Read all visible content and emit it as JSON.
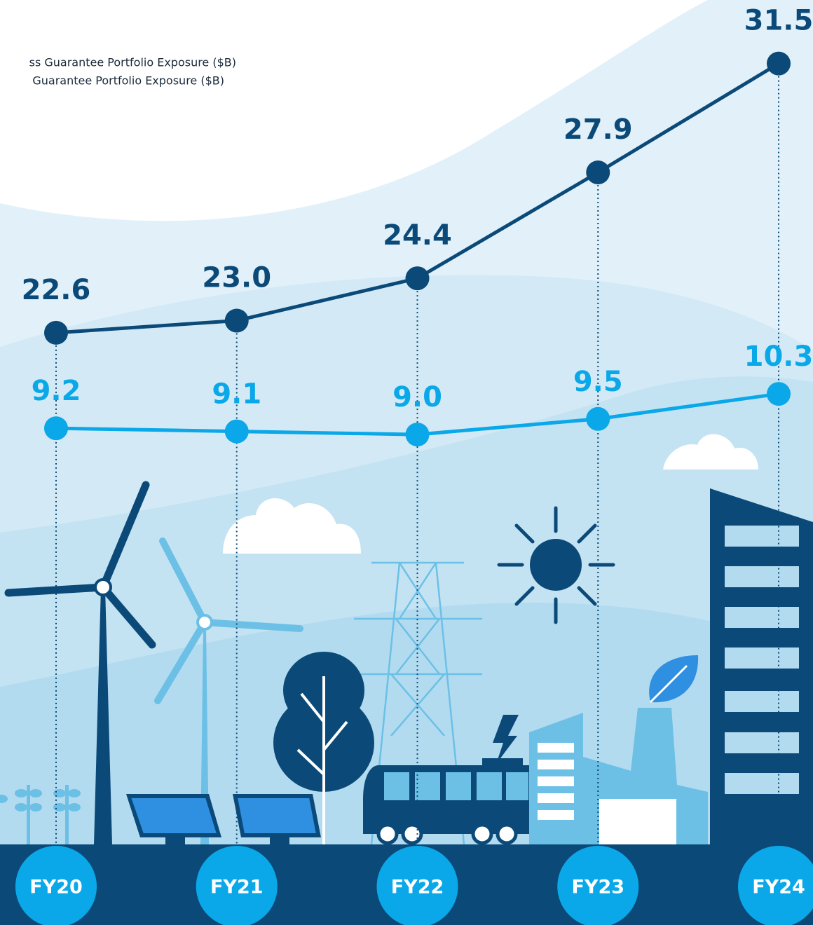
{
  "chart_data": {
    "type": "line",
    "categories": [
      "FY20",
      "FY21",
      "FY22",
      "FY23",
      "FY24"
    ],
    "series": [
      {
        "name": "ss Guarantee Portfolio Exposure ($B)",
        "color": "#0b4a78",
        "values": [
          22.6,
          23.0,
          24.4,
          27.9,
          31.5
        ],
        "value_labels": [
          "22.6",
          "23.0",
          "24.4",
          "27.9",
          "31.5"
        ]
      },
      {
        "name": " Guarantee Portfolio Exposure ($B)",
        "color": "#0aa8e8",
        "axis": "y2",
        "values": [
          9.2,
          9.1,
          9.0,
          9.5,
          10.3
        ],
        "value_labels": [
          "9.2",
          "9.1",
          "9.0",
          "9.5",
          "10.3"
        ]
      }
    ],
    "ylim": [
      5.8,
      33.6
    ],
    "y2lim": [
      -4.0,
      22.9
    ]
  }
}
